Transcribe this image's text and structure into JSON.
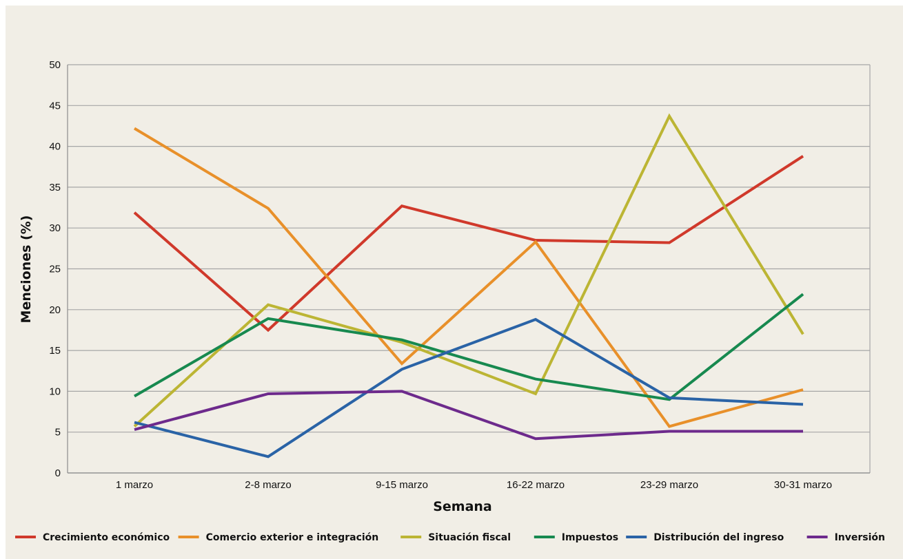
{
  "chart_data": {
    "type": "line",
    "categories": [
      "1 marzo",
      "2-8 marzo",
      "9-15 marzo",
      "16-22 marzo",
      "23-29 marzo",
      "30-31 marzo"
    ],
    "xlabel": "Semana",
    "ylabel": "Menciones (%)",
    "ylim": [
      0,
      50
    ],
    "yticks": [
      0,
      5,
      10,
      15,
      20,
      25,
      30,
      35,
      40,
      45,
      50
    ],
    "grid": true,
    "legend_position": "bottom",
    "series": [
      {
        "name": "Crecimiento económico",
        "color": "#d0392b",
        "values": [
          31.9,
          17.5,
          32.7,
          28.5,
          28.2,
          38.8
        ]
      },
      {
        "name": "Comercio exterior e integración",
        "color": "#e8902a",
        "values": [
          42.2,
          32.4,
          13.4,
          28.3,
          5.7,
          10.2
        ]
      },
      {
        "name": "Situación fiscal",
        "color": "#bcb534",
        "values": [
          5.7,
          20.6,
          16.0,
          9.7,
          43.7,
          17.0
        ]
      },
      {
        "name": "Impuestos",
        "color": "#17894f",
        "values": [
          9.4,
          18.9,
          16.3,
          11.5,
          9.0,
          21.9
        ]
      },
      {
        "name": "Distribución del ingreso",
        "color": "#2a63a6",
        "values": [
          6.2,
          2.0,
          12.7,
          18.8,
          9.2,
          8.4
        ]
      },
      {
        "name": "Inversión",
        "color": "#6d2a8c",
        "values": [
          5.3,
          9.7,
          10.0,
          4.2,
          5.1,
          5.1
        ]
      }
    ]
  }
}
